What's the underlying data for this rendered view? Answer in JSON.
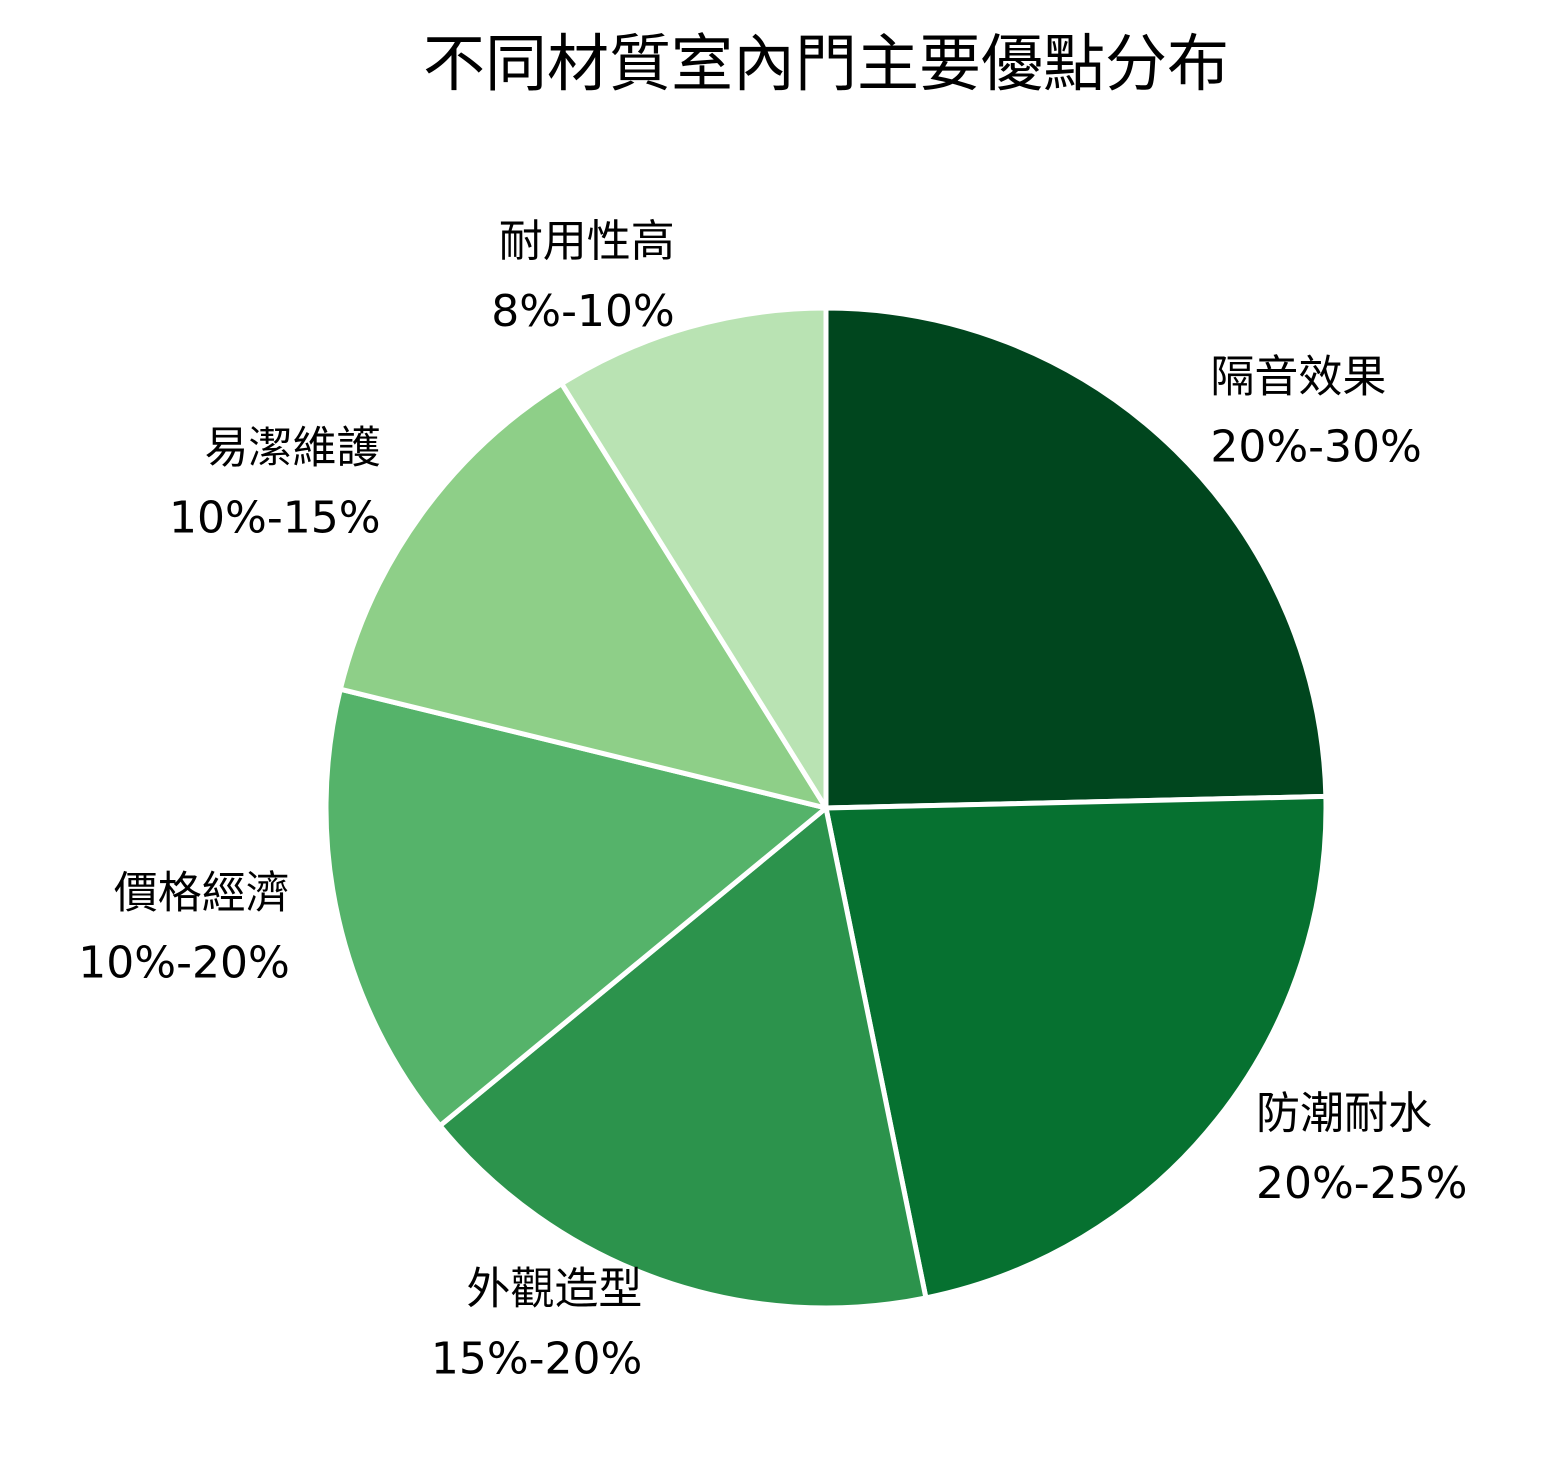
{
  "chart_data": {
    "type": "pie",
    "title": "不同材質室內門主要優點分布",
    "categories": [
      "隔音效果",
      "防潮耐水",
      "外觀造型",
      "價格經濟",
      "易潔維護",
      "耐用性高"
    ],
    "values": [
      25,
      22.5,
      17.5,
      15,
      12.5,
      9
    ],
    "value_labels": [
      "20%-30%",
      "20%-25%",
      "15%-20%",
      "10%-20%",
      "10%-15%",
      "8%-10%"
    ],
    "colors": [
      "#00461e",
      "#067130",
      "#2c934c",
      "#55b36a",
      "#8ecf88",
      "#b9e3b3"
    ]
  }
}
